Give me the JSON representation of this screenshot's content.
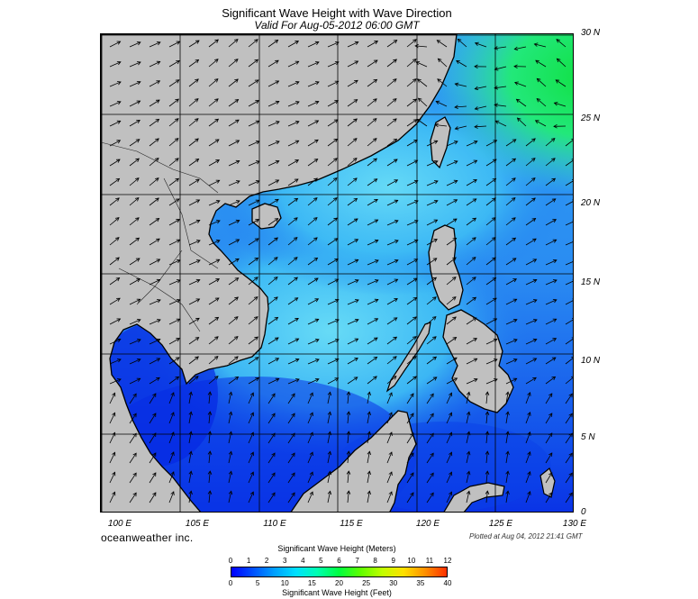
{
  "title": "Significant Wave Height with Wave Direction",
  "subtitle": "Valid For Aug-05-2012 06:00 GMT",
  "map": {
    "lon_range": [
      100,
      130
    ],
    "lat_range": [
      0,
      30
    ],
    "lat_labels": [
      "30 N",
      "25 N",
      "20 N",
      "15 N",
      "10 N",
      "5 N",
      "0"
    ],
    "lon_labels": [
      "100 E",
      "105 E",
      "110 E",
      "115 E",
      "120 E",
      "125 E",
      "130 E"
    ],
    "grid": true,
    "colors": {
      "land": "#c0c0c0",
      "deep_blue": "#0a2ee6",
      "mid_blue": "#1e7af0",
      "light_cyan": "#5fd8f5",
      "green": "#17e060"
    }
  },
  "brand": "oceanweather inc.",
  "plotted": "Plotted at Aug 04, 2012 21:41 GMT",
  "legend": {
    "meters_title": "Significant Wave Height (Meters)",
    "feet_title": "Significant Wave Height (Feet)",
    "meters_ticks": [
      "0",
      "1",
      "2",
      "3",
      "4",
      "5",
      "6",
      "7",
      "8",
      "9",
      "10",
      "11",
      "12"
    ],
    "feet_ticks": [
      "0",
      "5",
      "10",
      "15",
      "20",
      "25",
      "30",
      "35",
      "40"
    ],
    "colormap": [
      "#0000ff",
      "#0050ff",
      "#00a0ff",
      "#00e0ff",
      "#00ffb0",
      "#00ff40",
      "#60ff00",
      "#c0ff00",
      "#ffe000",
      "#ff9000",
      "#ff3000"
    ]
  }
}
